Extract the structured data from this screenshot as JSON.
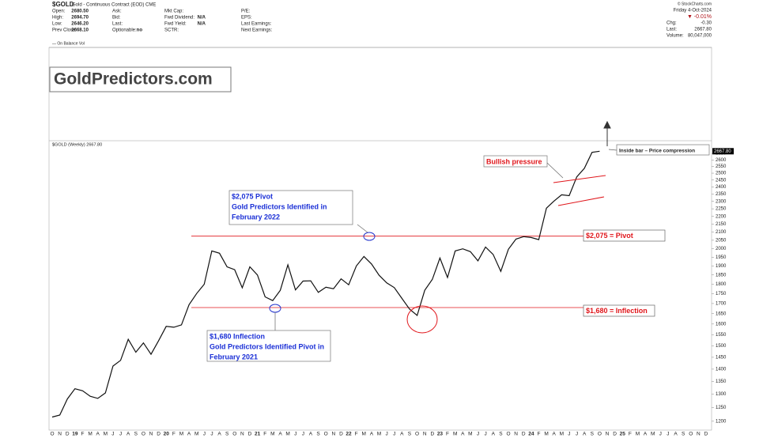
{
  "header": {
    "symbol": "$GOLD",
    "description": "Gold - Continuous Contract (EOD) CME",
    "copyright": "© StockCharts.com",
    "columns": [
      [
        [
          "Open:",
          "2680.50"
        ],
        [
          "High:",
          "2694.70"
        ],
        [
          "Low:",
          "2646.20"
        ],
        [
          "Prev Close:",
          "2668.10"
        ]
      ],
      [
        [
          "Ask:",
          ""
        ],
        [
          "Bid:",
          ""
        ],
        [
          "Last:",
          ""
        ],
        [
          "Optionable:",
          "no"
        ]
      ],
      [
        [
          "Mkt Cap:",
          ""
        ],
        [
          "Fwd Dividend:",
          "N/A"
        ],
        [
          "Fwd Yield:",
          "N/A"
        ],
        [
          "SCTR:",
          ""
        ]
      ],
      [
        [
          "P/E:",
          ""
        ],
        [
          "EPS:",
          ""
        ],
        [
          "Last Earnings:",
          ""
        ],
        [
          "Next Earnings:",
          ""
        ]
      ]
    ],
    "date": "Friday  4-Oct-2024",
    "change_pct": "▼  -0.01%",
    "right": [
      [
        "Chg:",
        "-0.30"
      ],
      [
        "Last:",
        "2667.80"
      ],
      [
        "Volume:",
        "80,047,000"
      ]
    ],
    "indicator": "— On Balance Vol"
  },
  "chart_data": {
    "type": "line",
    "title": "GoldPredictors.com",
    "plot_label": "$GOLD (Weekly) 2667.80",
    "categories": [
      "O",
      "N",
      "D",
      "19",
      "F",
      "M",
      "A",
      "M",
      "J",
      "J",
      "A",
      "S",
      "O",
      "N",
      "D",
      "20",
      "F",
      "M",
      "A",
      "M",
      "J",
      "J",
      "A",
      "S",
      "O",
      "N",
      "D",
      "21",
      "F",
      "M",
      "A",
      "M",
      "J",
      "J",
      "A",
      "S",
      "O",
      "N",
      "D",
      "22",
      "F",
      "M",
      "A",
      "M",
      "J",
      "J",
      "A",
      "S",
      "O",
      "N",
      "D",
      "23",
      "F",
      "M",
      "A",
      "M",
      "J",
      "J",
      "A",
      "S",
      "O",
      "N",
      "D",
      "24",
      "F",
      "M",
      "A",
      "M",
      "J",
      "J",
      "A",
      "S",
      "O",
      "N",
      "D",
      "25",
      "F",
      "M",
      "A",
      "M",
      "J",
      "J",
      "A",
      "S",
      "O",
      "N",
      "D"
    ],
    "series": [
      {
        "name": "$GOLD",
        "color": "#111111",
        "values": [
          1215,
          1222,
          1282,
          1321,
          1313,
          1292,
          1284,
          1305,
          1413,
          1437,
          1529,
          1472,
          1513,
          1463,
          1523,
          1589,
          1585,
          1596,
          1694,
          1751,
          1800,
          1986,
          1973,
          1895,
          1879,
          1781,
          1895,
          1850,
          1734,
          1715,
          1768,
          1906,
          1770,
          1817,
          1818,
          1757,
          1784,
          1776,
          1829,
          1797,
          1900,
          1954,
          1911,
          1848,
          1807,
          1782,
          1726,
          1672,
          1641,
          1768,
          1826,
          1945,
          1836,
          1986,
          1999,
          1982,
          1929,
          2009,
          1966,
          1870,
          1996,
          2057,
          2072,
          2067,
          2054,
          2254,
          2302,
          2345,
          2339,
          2473,
          2536,
          2659,
          2667.8,
          null,
          null,
          null,
          null,
          null,
          null,
          null,
          null,
          null,
          null,
          null,
          null,
          null,
          null
        ]
      }
    ],
    "log_scale": true,
    "ylim": [
      1180,
      2720
    ],
    "yticks": [
      1200,
      1250,
      1300,
      1350,
      1400,
      1450,
      1500,
      1550,
      1600,
      1650,
      1700,
      1750,
      1800,
      1850,
      1900,
      1950,
      2000,
      2050,
      2100,
      2150,
      2200,
      2250,
      2300,
      2350,
      2400,
      2450,
      2500,
      2550,
      2600,
      2650
    ],
    "last_price": {
      "value": 2667.8,
      "label": "2667.80"
    },
    "hlines": [
      {
        "value": 2075,
        "label": "$2,075 = Pivot",
        "color": "#e0161b"
      },
      {
        "value": 1680,
        "label": "$1,680 = Inflection",
        "color": "#e0161b"
      }
    ],
    "annotations": [
      {
        "lines": [
          "$2,075 Pivot",
          "Gold Predictors Identified in",
          "February 2022"
        ]
      },
      {
        "lines": [
          "$1,680 Inflection",
          "Gold Predictors Identified Pivot in",
          "February 2021"
        ]
      },
      {
        "lines": [
          "Bullish pressure"
        ]
      },
      {
        "lines": [
          "Inside bar – Price compression"
        ]
      }
    ]
  }
}
